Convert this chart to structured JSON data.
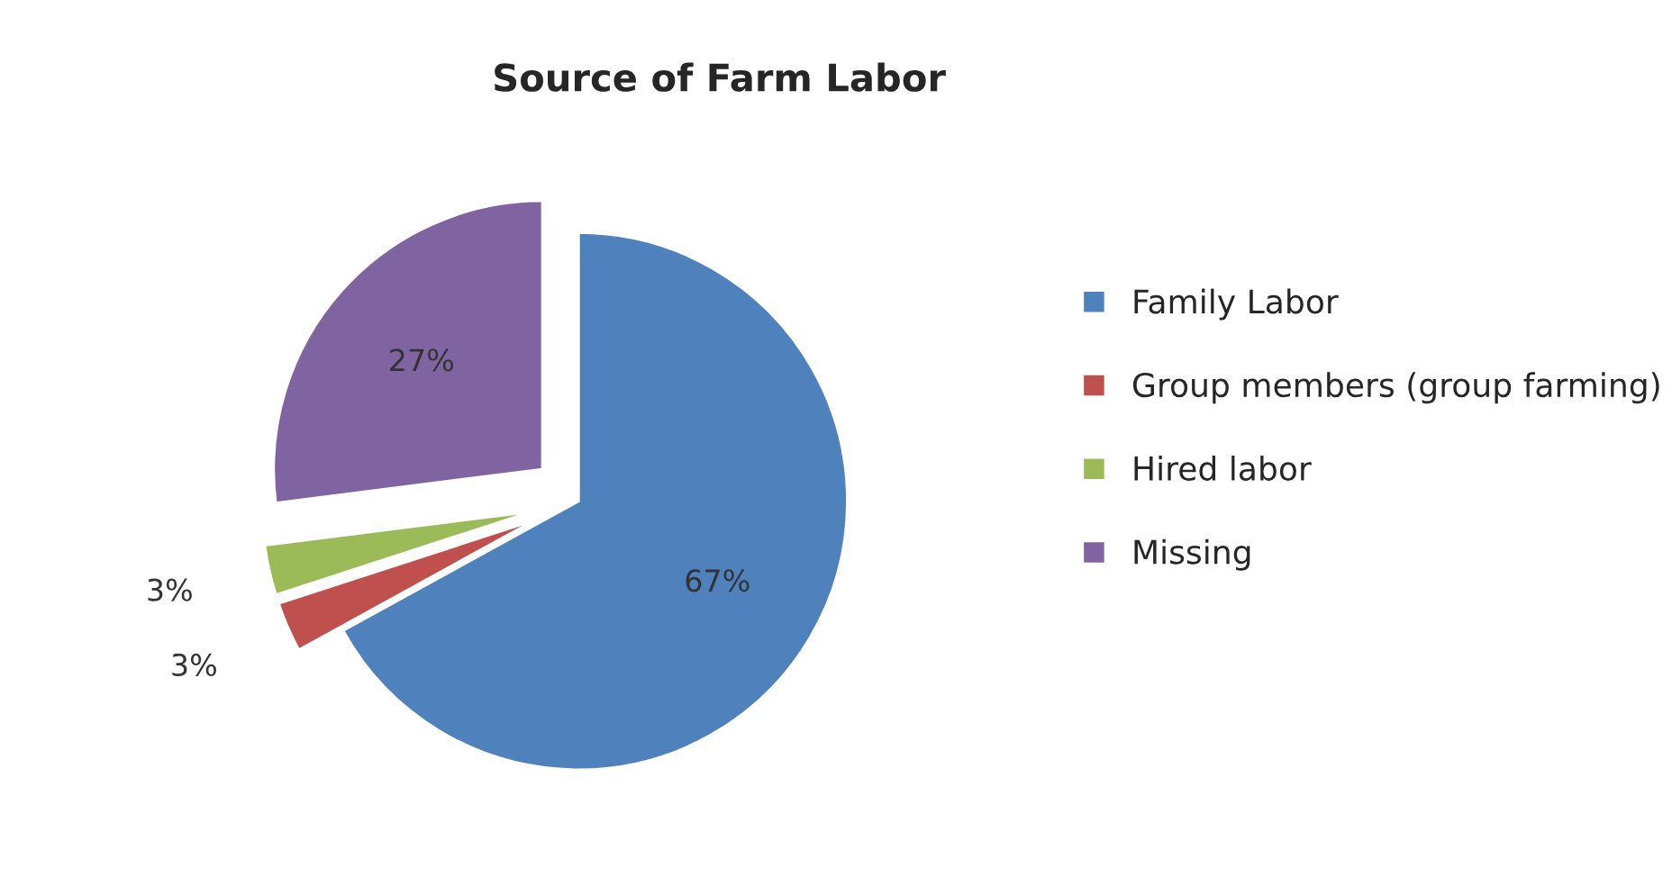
{
  "chart_data": {
    "type": "pie",
    "title": "Source of Farm Labor",
    "categories": [
      "Family Labor",
      "Group members (group farming)",
      "Hired labor",
      "Missing"
    ],
    "values": [
      67,
      3,
      3,
      27
    ],
    "colors": [
      "#4f81bd",
      "#c0504d",
      "#9bbb59",
      "#8064a2"
    ],
    "value_labels": [
      "67%",
      "3%",
      "3%",
      "27%"
    ],
    "legend": "right"
  }
}
